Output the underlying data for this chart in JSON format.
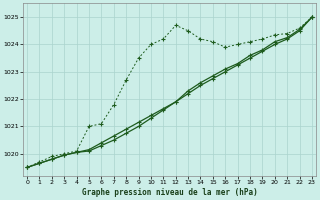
{
  "title": "Graphe pression niveau de la mer (hPa)",
  "bg_color": "#cceee8",
  "grid_color": "#aad4ce",
  "line_color": "#1e5c1e",
  "x_ticks": [
    0,
    1,
    2,
    3,
    4,
    5,
    6,
    7,
    8,
    9,
    10,
    11,
    12,
    13,
    14,
    15,
    16,
    17,
    18,
    19,
    20,
    21,
    22,
    23
  ],
  "y_ticks": [
    1020,
    1021,
    1022,
    1023,
    1024,
    1025
  ],
  "ylim": [
    1019.2,
    1025.5
  ],
  "xlim": [
    -0.3,
    23.3
  ],
  "series_dotted": [
    1019.5,
    1019.7,
    1019.9,
    1020.0,
    1020.1,
    1021.0,
    1021.1,
    1021.8,
    1022.7,
    1023.5,
    1024.0,
    1024.2,
    1024.7,
    1024.5,
    1024.2,
    1024.1,
    1023.9,
    1024.0,
    1024.1,
    1024.2,
    1024.35,
    1024.4,
    1024.6,
    1025.0
  ],
  "series_solid1": [
    1019.5,
    1019.65,
    1019.8,
    1019.95,
    1020.05,
    1020.1,
    1020.3,
    1020.5,
    1020.75,
    1021.0,
    1021.3,
    1021.6,
    1021.9,
    1022.2,
    1022.5,
    1022.75,
    1023.0,
    1023.25,
    1023.5,
    1023.75,
    1024.0,
    1024.2,
    1024.5,
    1025.0
  ],
  "series_solid2": [
    1019.5,
    1019.65,
    1019.8,
    1019.95,
    1020.05,
    1020.15,
    1020.4,
    1020.65,
    1020.9,
    1021.15,
    1021.4,
    1021.65,
    1021.9,
    1022.3,
    1022.6,
    1022.85,
    1023.1,
    1023.3,
    1023.6,
    1023.8,
    1024.1,
    1024.25,
    1024.55,
    1025.0
  ]
}
